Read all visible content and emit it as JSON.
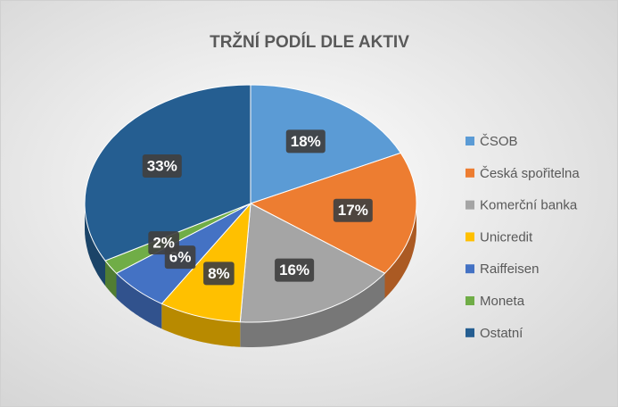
{
  "chart_data": {
    "type": "pie3d",
    "title": "TRŽNÍ PODÍL DLE AKTIV",
    "categories": [
      "ČSOB",
      "Česká spořitelna",
      "Komerční banka",
      "Unicredit",
      "Raiffeisen",
      "Moneta",
      "Ostatní"
    ],
    "values": [
      18,
      17,
      16,
      8,
      6,
      2,
      33
    ],
    "value_labels": [
      "18%",
      "17%",
      "16%",
      "8%",
      "6%",
      "2%",
      "33%"
    ],
    "colors": [
      "#5b9bd5",
      "#ed7d31",
      "#a5a5a5",
      "#ffc000",
      "#4472c4",
      "#70ad47",
      "#255e91"
    ],
    "legend": "right"
  }
}
